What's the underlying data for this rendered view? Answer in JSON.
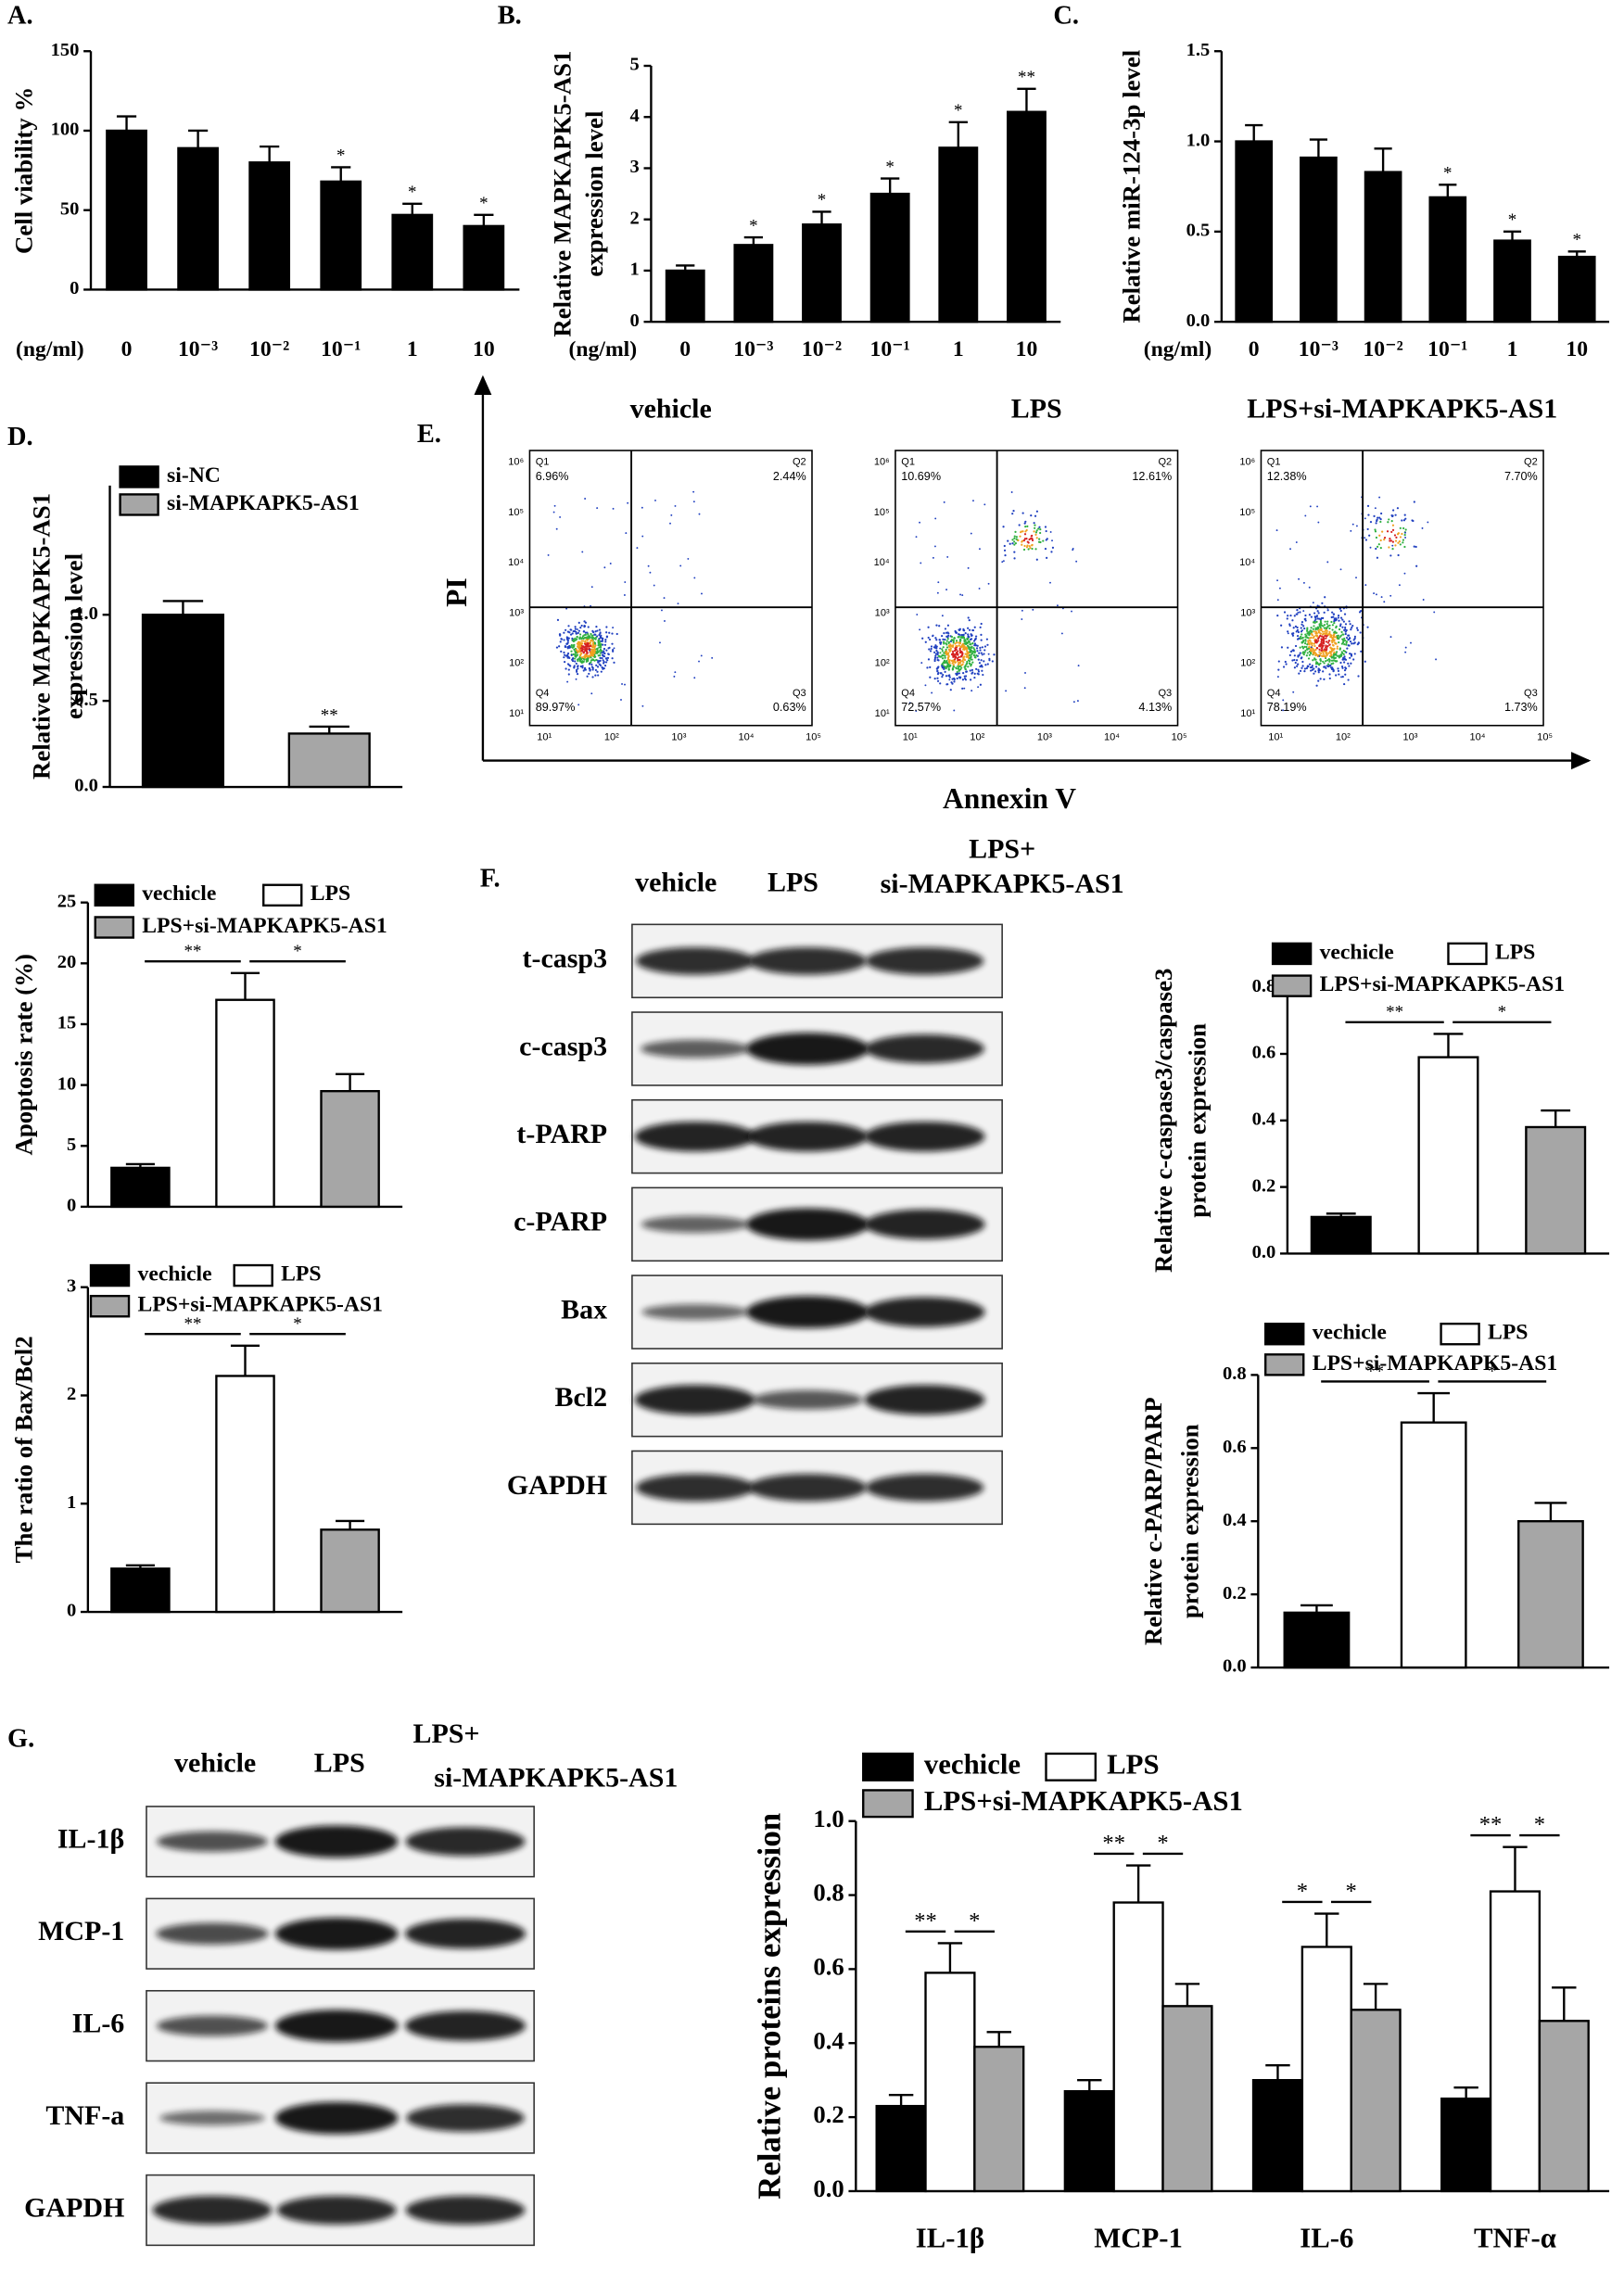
{
  "chart_data": [
    {
      "type": "bar",
      "panel": "A.",
      "ylabel": [
        "Cell viability %"
      ],
      "xlabel": "(ng/ml)",
      "categories": [
        "0",
        "10⁻³",
        "10⁻²",
        "10⁻¹",
        "1",
        "10"
      ],
      "values": [
        100,
        89,
        80,
        68,
        47,
        40
      ],
      "errors": [
        9,
        11,
        10,
        9,
        7,
        7
      ],
      "stars": [
        null,
        null,
        null,
        "*",
        "*",
        "*"
      ],
      "color": "#000000",
      "ylim": [
        0,
        150
      ],
      "yticks": [
        0,
        50,
        100,
        150
      ]
    },
    {
      "type": "bar",
      "panel": "B.",
      "ylabel": [
        "Relative MAPKAPK5-AS1",
        "expression level"
      ],
      "xlabel": "(ng/ml)",
      "categories": [
        "0",
        "10⁻³",
        "10⁻²",
        "10⁻¹",
        "1",
        "10"
      ],
      "values": [
        1.0,
        1.5,
        1.9,
        2.5,
        3.4,
        4.1
      ],
      "errors": [
        0.1,
        0.15,
        0.25,
        0.3,
        0.5,
        0.45
      ],
      "stars": [
        null,
        "*",
        "*",
        "*",
        "*",
        "**"
      ],
      "color": "#000000",
      "ylim": [
        0,
        5
      ],
      "yticks": [
        0,
        1,
        2,
        3,
        4,
        5
      ]
    },
    {
      "type": "bar",
      "panel": "C.",
      "ylabel": [
        "Relative miR-124-3p level"
      ],
      "xlabel": "(ng/ml)",
      "categories": [
        "0",
        "10⁻³",
        "10⁻²",
        "10⁻¹",
        "1",
        "10"
      ],
      "values": [
        1.0,
        0.91,
        0.83,
        0.69,
        0.45,
        0.36
      ],
      "errors": [
        0.09,
        0.1,
        0.13,
        0.07,
        0.05,
        0.03
      ],
      "stars": [
        null,
        null,
        null,
        "*",
        "*",
        "*"
      ],
      "color": "#000000",
      "ylim": [
        0,
        1.5
      ],
      "yticks": [
        {
          "value": 0,
          "label": "0.0"
        },
        0.5,
        {
          "value": 1,
          "label": "1.0"
        },
        1.5
      ]
    },
    {
      "type": "bar",
      "panel": "D.",
      "ylabel": [
        "Relative MAPKAPK5-AS1",
        "expression level"
      ],
      "series": [
        {
          "name": "si-NC",
          "color": "#000000",
          "values": [
            1.0
          ],
          "errors": [
            0.08
          ]
        },
        {
          "name": "si-MAPKAPK5-AS1",
          "color": "#a6a6a6",
          "values": [
            0.31
          ],
          "errors": [
            0.04
          ],
          "stars": [
            "**"
          ]
        }
      ],
      "ylim": [
        0,
        1.75
      ],
      "yticks": [
        {
          "value": 0,
          "label": "0.0"
        },
        0.5,
        {
          "value": 1,
          "label": "1.0"
        }
      ]
    },
    {
      "type": "bar",
      "ylabel": [
        "Apoptosis rate (%)"
      ],
      "series": [
        {
          "name": "vechicle",
          "color": "#000000",
          "values": [
            3.2
          ],
          "errors": [
            0.3
          ]
        },
        {
          "name": "LPS",
          "color": "#ffffff",
          "values": [
            17
          ],
          "errors": [
            2.2
          ]
        },
        {
          "name": "LPS+si-MAPKAPK5-AS1",
          "color": "#a6a6a6",
          "values": [
            9.5
          ],
          "errors": [
            1.4
          ]
        }
      ],
      "brackets": [
        "**",
        "*"
      ],
      "ylim": [
        0,
        25
      ],
      "yticks": [
        0,
        5,
        10,
        15,
        20,
        25
      ]
    },
    {
      "type": "bar",
      "ylabel": [
        "The ratio of Bax/Bcl2"
      ],
      "series": [
        {
          "name": "vechicle",
          "color": "#000000",
          "values": [
            0.4
          ],
          "errors": [
            0.03
          ]
        },
        {
          "name": "LPS",
          "color": "#ffffff",
          "values": [
            2.18
          ],
          "errors": [
            0.28
          ]
        },
        {
          "name": "LPS+si-MAPKAPK5-AS1",
          "color": "#a6a6a6",
          "values": [
            0.76
          ],
          "errors": [
            0.08
          ]
        }
      ],
      "brackets": [
        "**",
        "*"
      ],
      "ylim": [
        0,
        3
      ],
      "yticks": [
        0,
        1,
        2,
        3
      ]
    },
    {
      "type": "bar",
      "ylabel": [
        "Relative c-caspase3/caspase3",
        "protein expression"
      ],
      "series": [
        {
          "name": "vechicle",
          "color": "#000000",
          "values": [
            0.11
          ],
          "errors": [
            0.01
          ]
        },
        {
          "name": "LPS",
          "color": "#ffffff",
          "values": [
            0.59
          ],
          "errors": [
            0.07
          ]
        },
        {
          "name": "LPS+si-MAPKAPK5-AS1",
          "color": "#a6a6a6",
          "values": [
            0.38
          ],
          "errors": [
            0.05
          ]
        }
      ],
      "brackets": [
        "**",
        "*"
      ],
      "ylim": [
        0,
        0.8
      ],
      "yticks": [
        {
          "value": 0,
          "label": "0.0"
        },
        0.2,
        0.4,
        0.6,
        0.8
      ]
    },
    {
      "type": "bar",
      "ylabel": [
        "Relative c-PARP/PARP",
        "protein expression"
      ],
      "series": [
        {
          "name": "vechicle",
          "color": "#000000",
          "values": [
            0.15
          ],
          "errors": [
            0.02
          ]
        },
        {
          "name": "LPS",
          "color": "#ffffff",
          "values": [
            0.67
          ],
          "errors": [
            0.08
          ]
        },
        {
          "name": "LPS+si-MAPKAPK5-AS1",
          "color": "#a6a6a6",
          "values": [
            0.4
          ],
          "errors": [
            0.05
          ]
        }
      ],
      "brackets": [
        "**",
        "*"
      ],
      "ylim": [
        0,
        0.8
      ],
      "yticks": [
        {
          "value": 0,
          "label": "0.0"
        },
        0.2,
        0.4,
        0.6,
        0.8
      ]
    },
    {
      "type": "bar",
      "ylabel": [
        "Relative  proteins expression"
      ],
      "categories": [
        "IL-1β",
        "MCP-1",
        "IL-6",
        "TNF-α"
      ],
      "series": [
        {
          "name": "vechicle",
          "color": "#000000",
          "values": [
            0.23,
            0.27,
            0.3,
            0.25
          ],
          "errors": [
            0.03,
            0.03,
            0.04,
            0.03
          ]
        },
        {
          "name": "LPS",
          "color": "#ffffff",
          "values": [
            0.59,
            0.78,
            0.66,
            0.81
          ],
          "errors": [
            0.08,
            0.1,
            0.09,
            0.12
          ]
        },
        {
          "name": "LPS+si-MAPKAPK5-AS1",
          "color": "#a6a6a6",
          "values": [
            0.39,
            0.5,
            0.49,
            0.46
          ],
          "errors": [
            0.04,
            0.06,
            0.07,
            0.09
          ]
        }
      ],
      "brackets": [
        [
          "**",
          "*"
        ],
        [
          "**",
          "*"
        ],
        [
          "*",
          "*"
        ],
        [
          "**",
          "*"
        ]
      ],
      "ylim": [
        0,
        1
      ],
      "yticks": [
        {
          "value": 0,
          "label": "0.0"
        },
        0.2,
        0.4,
        0.6,
        0.8,
        {
          "value": 1,
          "label": "1.0"
        }
      ]
    }
  ],
  "flow": {
    "panel": "E.",
    "ylabel": "PI",
    "xlabel": "Annexin V",
    "xticks": [
      "10¹",
      "10²",
      "10³",
      "10⁴",
      "10⁵"
    ],
    "yticks": [
      "10⁶",
      "10⁵",
      "10⁴",
      "10³",
      "10²",
      "10¹"
    ],
    "plots": [
      {
        "title": "vehicle",
        "quadrants": [
          {
            "name": "Q1",
            "percent": "6.96%"
          },
          {
            "name": "Q2",
            "percent": "2.44%"
          },
          {
            "name": "Q3",
            "percent": "0.63%"
          },
          {
            "name": "Q4",
            "percent": "89.97%"
          }
        ]
      },
      {
        "title": "LPS",
        "quadrants": [
          {
            "name": "Q1",
            "percent": "10.69%"
          },
          {
            "name": "Q2",
            "percent": "12.61%"
          },
          {
            "name": "Q3",
            "percent": "4.13%"
          },
          {
            "name": "Q4",
            "percent": "72.57%"
          }
        ]
      },
      {
        "title": "LPS+si-MAPKAPK5-AS1",
        "quadrants": [
          {
            "name": "Q1",
            "percent": "12.38%"
          },
          {
            "name": "Q2",
            "percent": "7.70%"
          },
          {
            "name": "Q3",
            "percent": "1.73%"
          },
          {
            "name": "Q4",
            "percent": "78.19%"
          }
        ]
      }
    ]
  },
  "blots": [
    {
      "panel": "F.",
      "lanes": [
        [
          "vehicle"
        ],
        [
          "LPS"
        ],
        [
          "LPS+",
          "si-MAPKAPK5-AS1"
        ]
      ],
      "rows": [
        "t-casp3",
        "c-casp3",
        "t-PARP",
        "c-PARP",
        "Bax",
        "Bcl2",
        "GAPDH"
      ]
    },
    {
      "panel": "G.",
      "lanes": [
        [
          "vehicle"
        ],
        [
          "LPS"
        ],
        [
          "LPS+",
          "si-MAPKAPK5-AS1"
        ]
      ],
      "rows": [
        "IL-1β",
        "MCP-1",
        "IL-6",
        "TNF-a",
        "GAPDH"
      ]
    }
  ]
}
